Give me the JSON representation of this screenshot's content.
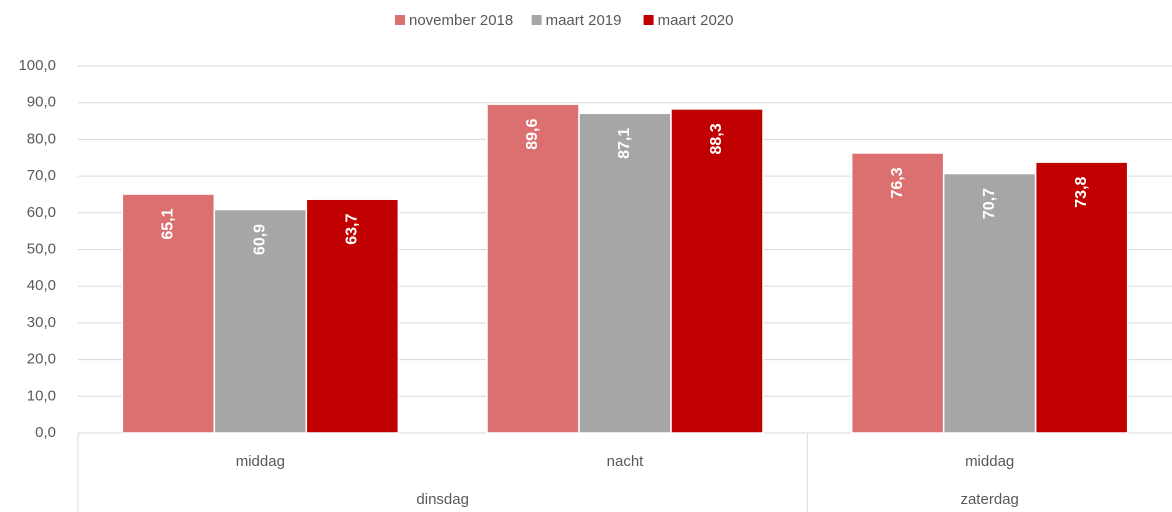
{
  "chart_data": {
    "type": "bar",
    "categories": [
      "middag",
      "nacht",
      "middag"
    ],
    "category_groups": [
      "dinsdag",
      "dinsdag",
      "zaterdag"
    ],
    "series": [
      {
        "name": "november 2018",
        "color": "#dc7070",
        "values": [
          65.1,
          89.6,
          76.3
        ],
        "value_labels": [
          "65,1",
          "89,6",
          "76,3"
        ]
      },
      {
        "name": "maart 2019",
        "color": "#a6a6a6",
        "values": [
          60.9,
          87.1,
          70.7
        ],
        "value_labels": [
          "60,9",
          "87,1",
          "70,7"
        ]
      },
      {
        "name": "maart 2020",
        "color": "#c00000",
        "values": [
          63.7,
          88.3,
          73.8
        ],
        "value_labels": [
          "63,7",
          "88,3",
          "73,8"
        ]
      }
    ],
    "ylim": [
      0,
      100
    ],
    "yticks": [
      {
        "value": 0,
        "label": "0,0"
      },
      {
        "value": 10,
        "label": "10,0"
      },
      {
        "value": 20,
        "label": "20,0"
      },
      {
        "value": 30,
        "label": "30,0"
      },
      {
        "value": 40,
        "label": "40,0"
      },
      {
        "value": 50,
        "label": "50,0"
      },
      {
        "value": 60,
        "label": "60,0"
      },
      {
        "value": 70,
        "label": "70,0"
      },
      {
        "value": 80,
        "label": "80,0"
      },
      {
        "value": 90,
        "label": "90,0"
      },
      {
        "value": 100,
        "label": "100,0"
      }
    ],
    "grid": true,
    "legend": "top"
  }
}
